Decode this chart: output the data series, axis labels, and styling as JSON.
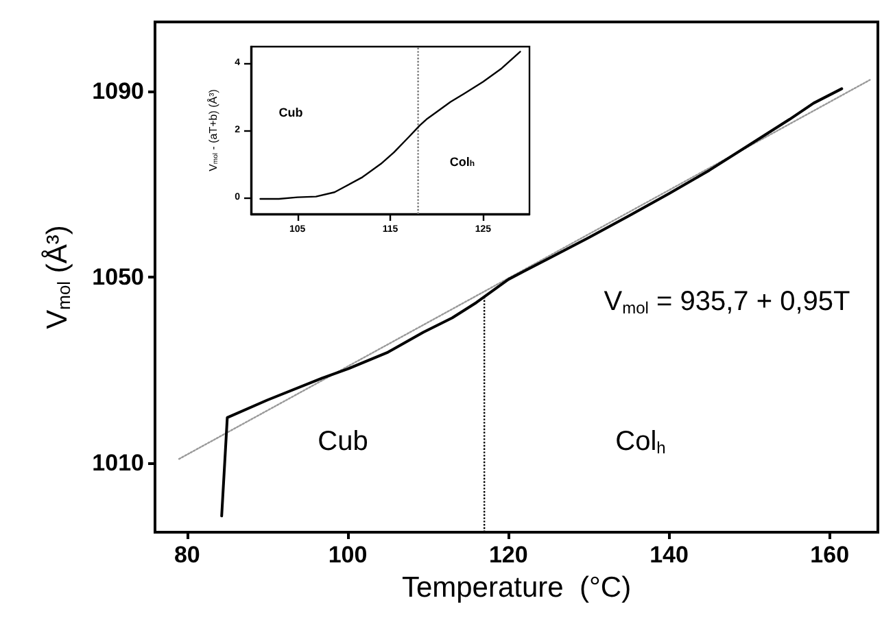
{
  "chart_data": [
    {
      "type": "line",
      "xlabel": "Temperature  (°C)",
      "ylabel": "V$_{mol}$ (Å³)",
      "xlim": [
        76,
        166
      ],
      "xticks": [
        80,
        100,
        120,
        140,
        160
      ],
      "ylim": [
        995,
        1105
      ],
      "yticks": [
        1010,
        1050,
        1090
      ],
      "marker": "none",
      "grid": false,
      "series": [
        {
          "color": "#000000",
          "x": [
            84.3,
            85,
            90,
            96.8,
            100,
            105,
            109.4,
            113,
            116,
            120,
            125,
            130,
            135,
            140,
            145,
            150,
            155,
            158,
            161.5
          ],
          "values": [
            998.5,
            1019.7,
            1023.5,
            1028.2,
            1030.2,
            1033.8,
            1038.1,
            1041.2,
            1044.5,
            1049.5,
            1054,
            1058.5,
            1063.2,
            1068,
            1073,
            1078.5,
            1084,
            1087.5,
            1090.6
          ]
        },
        {
          "color": "#999999",
          "line_style": "dotted",
          "x": [
            79,
            165
          ],
          "values": [
            1010.8,
            1092.5
          ]
        }
      ],
      "ref_lines": [
        {
          "axis": "x",
          "value": 117,
          "color": "#000000",
          "line_style": "dotted"
        }
      ],
      "annotations": [
        "Cub",
        "Col$_{h}$",
        "V$_{mol}$ = 935,7 + 0,95T"
      ]
    },
    {
      "type": "line",
      "ylabel": "V$_{mol}$ - (aT+b) (Å³)",
      "xlim": [
        100,
        130
      ],
      "xticks": [
        105,
        115,
        125
      ],
      "ylim": [
        -0.5,
        4.5
      ],
      "yticks": [
        0,
        2,
        4
      ],
      "marker": "none",
      "grid": false,
      "series": [
        {
          "color": "#000000",
          "x": [
            101,
            103,
            105,
            107,
            109,
            110,
            112,
            114,
            115.4,
            117,
            118.2,
            119,
            120,
            121.5,
            123,
            125,
            127,
            129
          ],
          "values": [
            -0.05,
            -0.05,
            0,
            0.02,
            0.15,
            0.3,
            0.6,
            1.0,
            1.34,
            1.8,
            2.15,
            2.35,
            2.55,
            2.85,
            3.1,
            3.45,
            3.85,
            4.35
          ]
        }
      ],
      "ref_lines": [
        {
          "axis": "x",
          "value": 118,
          "color": "#777777",
          "line_style": "dotted"
        }
      ],
      "annotations": [
        "Cub",
        "Col$_{h}$"
      ]
    }
  ]
}
